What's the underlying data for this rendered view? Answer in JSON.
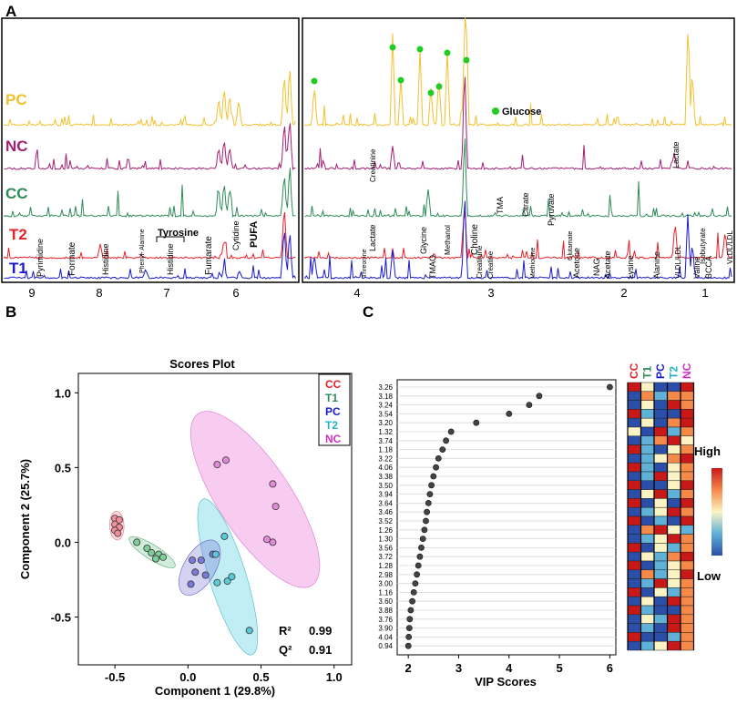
{
  "colors": {
    "PC": "#f2c12e",
    "NC": "#a61e72",
    "CC": "#2e8b57",
    "T2": "#e8202a",
    "T1": "#1a1acd"
  },
  "panelA": {
    "letter": "A",
    "groups": [
      "PC",
      "NC",
      "CC",
      "T2",
      "T1"
    ],
    "left_axis_ticks": [
      "9",
      "8",
      "7",
      "6"
    ],
    "right_axis_ticks": [
      "4",
      "3",
      "2",
      "1"
    ],
    "glucose_label": "Glucose",
    "left_labels": {
      "pyrimidine": "Pyrimidine",
      "formate": "Formate",
      "histidine_a": "Histidine",
      "phenylalanine": "Phenyl-\nAlanine",
      "histidine_b": "Histidine",
      "tyrosine": "Tyrosine",
      "fumarate": "Fumarate",
      "cytidine": "Cytidine",
      "pufa": "PUFA"
    },
    "right_labels": {
      "creatinine_nc": "Creatinine",
      "lactate_nc": "Lactate",
      "tma": "TMA",
      "citrate": "Citrate",
      "pyruvate": "Pyruvate",
      "lactate_t2": "Lactate",
      "glycine": "Glycine",
      "methanol": "Methanol",
      "choline": "Choline",
      "glutamate": "Glutamate",
      "isobutyrate": "Isobutyrate",
      "vldl_ldl_t2": "VLDL/LDL",
      "threonine": "Threonine",
      "tmao": "TMAO",
      "creatinine_t1": "Creatinine",
      "creatine": "Creatine",
      "methionine": "Methionine",
      "acetone": "Acetone",
      "nag": "NAG",
      "acetate": "Acetate",
      "lysine": "Lysine",
      "alanine": "Alanine",
      "vldl_ldl_t1": "VLDL/LDL",
      "valine": "Valine",
      "bcca": "BCCA"
    }
  },
  "panelB": {
    "letter": "B"
  },
  "panelC": {
    "letter": "C"
  },
  "chart_data": [
    {
      "type": "scatter",
      "title": "Scores Plot",
      "xlabel": "Component 1 (29.8%)",
      "ylabel": "Component 2 (25.7%)",
      "xlim": [
        -0.75,
        1.12
      ],
      "ylim": [
        -0.82,
        1.13
      ],
      "xticks": [
        "-0.5",
        "0.0",
        "0.5",
        "1.0"
      ],
      "yticks": [
        "1.0",
        "0.5",
        "0.0",
        "-0.5"
      ],
      "legend": [
        "CC",
        "T1",
        "PC",
        "T2",
        "NC"
      ],
      "r2_label": "R²",
      "r2": "0.99",
      "q2_label": "Q²",
      "q2": "0.91",
      "series": [
        {
          "name": "CC",
          "points": [
            [
              -0.5,
              0.16
            ],
            [
              -0.47,
              0.15
            ],
            [
              -0.5,
              0.12
            ],
            [
              -0.47,
              0.1
            ],
            [
              -0.5,
              0.08
            ],
            [
              -0.48,
              0.06
            ]
          ]
        },
        {
          "name": "T1",
          "points": [
            [
              -0.35,
              0.0
            ],
            [
              -0.28,
              -0.04
            ],
            [
              -0.25,
              -0.07
            ],
            [
              -0.2,
              -0.08
            ],
            [
              -0.22,
              -0.11
            ],
            [
              -0.17,
              -0.1
            ]
          ]
        },
        {
          "name": "PC",
          "points": [
            [
              0.03,
              -0.12
            ],
            [
              0.09,
              -0.12
            ],
            [
              0.17,
              -0.08
            ],
            [
              0.05,
              -0.2
            ],
            [
              0.12,
              -0.22
            ],
            [
              0.02,
              -0.28
            ]
          ]
        },
        {
          "name": "T2",
          "points": [
            [
              0.25,
              0.04
            ],
            [
              0.19,
              -0.08
            ],
            [
              0.27,
              -0.26
            ],
            [
              0.3,
              -0.23
            ],
            [
              0.2,
              -0.27
            ],
            [
              0.42,
              -0.59
            ]
          ]
        },
        {
          "name": "NC",
          "points": [
            [
              0.26,
              0.55
            ],
            [
              0.2,
              0.52
            ],
            [
              0.58,
              0.39
            ],
            [
              0.6,
              0.24
            ],
            [
              0.54,
              0.02
            ],
            [
              0.58,
              0.0
            ]
          ]
        }
      ]
    },
    {
      "type": "scatter",
      "xlabel": "VIP Scores",
      "xlim": [
        1.78,
        6.12
      ],
      "xticks": [
        "2",
        "3",
        "4",
        "5",
        "6"
      ],
      "categories": [
        "3.26",
        "3.18",
        "3.24",
        "3.54",
        "3.20",
        "1.32",
        "3.74",
        "1.18",
        "3.22",
        "4.06",
        "3.38",
        "3.50",
        "3.94",
        "3.64",
        "3.46",
        "3.52",
        "1.26",
        "1.30",
        "3.56",
        "3.72",
        "1.28",
        "2.98",
        "3.00",
        "1.16",
        "3.60",
        "3.88",
        "3.76",
        "3.90",
        "4.04",
        "0.94"
      ],
      "values": [
        6.0,
        4.6,
        4.4,
        4.0,
        3.35,
        2.85,
        2.75,
        2.68,
        2.6,
        2.55,
        2.5,
        2.46,
        2.43,
        2.4,
        2.37,
        2.35,
        2.32,
        2.29,
        2.26,
        2.23,
        2.2,
        2.17,
        2.14,
        2.11,
        2.08,
        2.05,
        2.03,
        2.02,
        2.01,
        2.0
      ]
    },
    {
      "type": "heatmap",
      "columns": [
        "CC",
        "T1",
        "PC",
        "T2",
        "NC"
      ],
      "legend_high": "High",
      "legend_low": "Low",
      "cells": [
        [
          5,
          3,
          1,
          1,
          5
        ],
        [
          1,
          4,
          2,
          4,
          4
        ],
        [
          1,
          3,
          1,
          5,
          4
        ],
        [
          5,
          2,
          1,
          1,
          5
        ],
        [
          1,
          3,
          1,
          4,
          5
        ],
        [
          3,
          1,
          5,
          2,
          4
        ],
        [
          1,
          2,
          4,
          5,
          3
        ],
        [
          5,
          2,
          1,
          3,
          4
        ],
        [
          1,
          2,
          3,
          4,
          5
        ],
        [
          5,
          2,
          1,
          3,
          4
        ],
        [
          1,
          2,
          5,
          3,
          4
        ],
        [
          5,
          1,
          1,
          3,
          5
        ],
        [
          1,
          3,
          5,
          2,
          4
        ],
        [
          5,
          1,
          3,
          1,
          5
        ],
        [
          1,
          2,
          3,
          5,
          4
        ],
        [
          5,
          1,
          2,
          1,
          5
        ],
        [
          1,
          4,
          5,
          3,
          2
        ],
        [
          1,
          2,
          3,
          5,
          4
        ],
        [
          5,
          1,
          3,
          2,
          4
        ],
        [
          1,
          3,
          2,
          4,
          5
        ],
        [
          5,
          1,
          2,
          3,
          4
        ],
        [
          1,
          4,
          2,
          3,
          5
        ],
        [
          1,
          2,
          5,
          3,
          4
        ],
        [
          5,
          1,
          3,
          2,
          4
        ],
        [
          1,
          3,
          1,
          5,
          4
        ],
        [
          5,
          2,
          1,
          1,
          4
        ],
        [
          1,
          3,
          2,
          5,
          4
        ],
        [
          1,
          2,
          1,
          5,
          4
        ],
        [
          5,
          1,
          1,
          2,
          4
        ],
        [
          1,
          2,
          3,
          5,
          4
        ]
      ]
    }
  ]
}
